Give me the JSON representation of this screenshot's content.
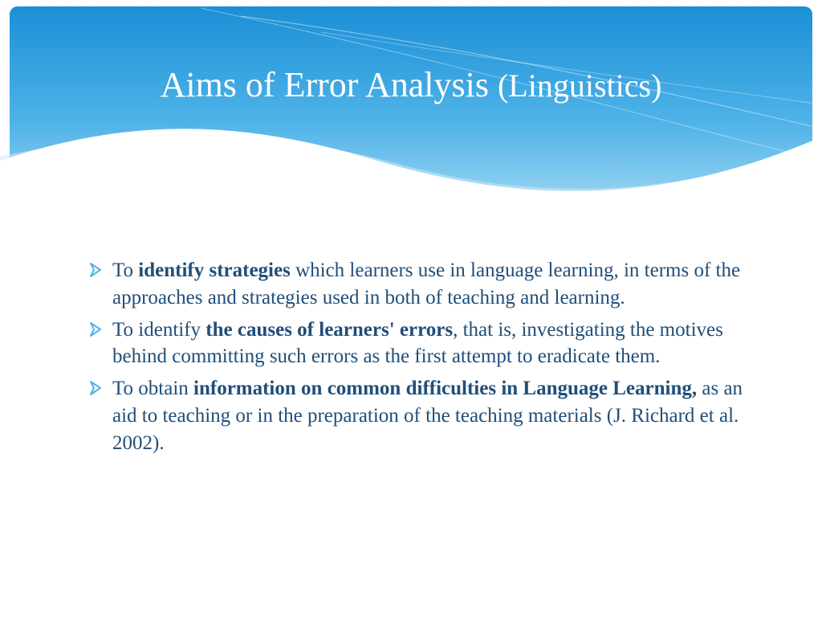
{
  "colors": {
    "header_gradient_top": "#1b8fd6",
    "header_gradient_mid": "#4fb3e8",
    "header_gradient_bottom": "#a7daf4",
    "wave_light": "#cce9f8",
    "wave_line": "#ffffff",
    "title_color": "#ffffff",
    "body_text": "#1f4e79",
    "bullet_arrow": "#4fb3e8",
    "background": "#ffffff"
  },
  "title": {
    "main": "Aims of Error Analysis ",
    "sub": "(Linguistics)",
    "main_fontsize": 44,
    "sub_fontsize": 40
  },
  "bullets": [
    {
      "segments": [
        {
          "text": "To ",
          "bold": false
        },
        {
          "text": "identify strategies",
          "bold": true
        },
        {
          "text": " which learners use in language learning, in terms of the approaches and strategies used in both of teaching and learning.",
          "bold": false
        }
      ]
    },
    {
      "segments": [
        {
          "text": "To identify ",
          "bold": false
        },
        {
          "text": "the causes of learners' errors",
          "bold": true
        },
        {
          "text": ", that is, investigating the motives behind committing such errors as the first attempt to eradicate them.",
          "bold": false
        }
      ]
    },
    {
      "segments": [
        {
          "text": " To obtain ",
          "bold": false
        },
        {
          "text": "information on common difficulties in Language Learning,",
          "bold": true
        },
        {
          "text": " as an aid to teaching or in the preparation of the teaching materials (J. Richard et al. 2002).",
          "bold": false
        }
      ]
    }
  ],
  "body_fontsize": 25
}
